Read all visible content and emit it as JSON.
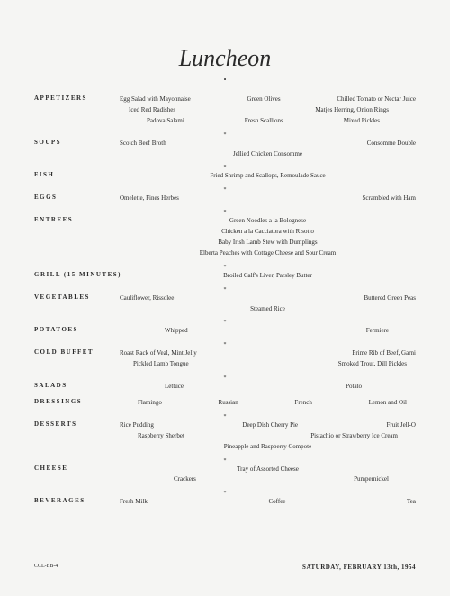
{
  "title": "Luncheon",
  "bullet": "•",
  "separator": "*",
  "sections": {
    "appetizers": {
      "label": "APPETIZERS",
      "row1": {
        "a": "Egg Salad with Mayonnaise",
        "b": "Green Olives",
        "c": "Chilled Tomato or Nectar Juice"
      },
      "row2": {
        "a": "Iced Red Radishes",
        "b": "Matjes Herring, Onion Rings"
      },
      "row3": {
        "a": "Padova Salami",
        "b": "Fresh Scallions",
        "c": "Mixed Pickles"
      }
    },
    "soups": {
      "label": "SOUPS",
      "row1": {
        "a": "Scotch Beef Broth",
        "b": "Consomme Double"
      },
      "row2": "Jellied Chicken Consomme"
    },
    "fish": {
      "label": "FISH",
      "row1": "Fried Shrimp and Scallops, Remoulade Sauce"
    },
    "eggs": {
      "label": "EGGS",
      "row1": {
        "a": "Omelette, Fines Herbes",
        "b": "Scrambled with Ham"
      }
    },
    "entrees": {
      "label": "ENTREES",
      "row1": "Green Noodles a la Bolognese",
      "row2": "Chicken a la Cacciatora with Risotto",
      "row3": "Baby Irish Lamb Stew with Dumplings",
      "row4": "Elberta Peaches with Cottage Cheese and Sour Cream"
    },
    "grill": {
      "label": "GRILL (15 Minutes)",
      "row1": "Broiled Calf's Liver, Parsley Butter"
    },
    "vegetables": {
      "label": "VEGETABLES",
      "row1": {
        "a": "Cauliflower, Rissolee",
        "b": "Buttered Green Peas"
      },
      "row2": "Steamed Rice"
    },
    "potatoes": {
      "label": "POTATOES",
      "row1": {
        "a": "Whipped",
        "b": "Fermiere"
      }
    },
    "coldbuffet": {
      "label": "COLD BUFFET",
      "row1": {
        "a": "Roast Rack of Veal, Mint Jelly",
        "b": "Prime Rib of Beef, Garni"
      },
      "row2": {
        "a": "Pickled Lamb Tongue",
        "b": "Smoked Trout, Dill Pickles"
      }
    },
    "salads": {
      "label": "SALADS",
      "row1": {
        "a": "Lettuce",
        "b": "Potato"
      }
    },
    "dressings": {
      "label": "DRESSINGS",
      "row1": {
        "a": "Flamingo",
        "b": "Russian",
        "c": "French",
        "d": "Lemon and Oil"
      }
    },
    "desserts": {
      "label": "DESSERTS",
      "row1": {
        "a": "Rice Pudding",
        "b": "Deep Dish Cherry Pie",
        "c": "Fruit Jell-O"
      },
      "row2": {
        "a": "Raspberry Sherbet",
        "b": "Pistachio or Strawberry Ice Cream"
      },
      "row3": "Pineapple and Raspberry Compote"
    },
    "cheese": {
      "label": "CHEESE",
      "row1": "Tray of Assorted Cheese",
      "row2": {
        "a": "Crackers",
        "b": "Pumpernickel"
      }
    },
    "beverages": {
      "label": "BEVERAGES",
      "row1": {
        "a": "Fresh Milk",
        "b": "Coffee",
        "c": "Tea"
      }
    }
  },
  "footer": {
    "code": "CCL-EB-4",
    "date": "SATURDAY, FEBRUARY 13th, 1954"
  },
  "colors": {
    "background": "#f5f5f3",
    "text": "#2a2a2a"
  }
}
